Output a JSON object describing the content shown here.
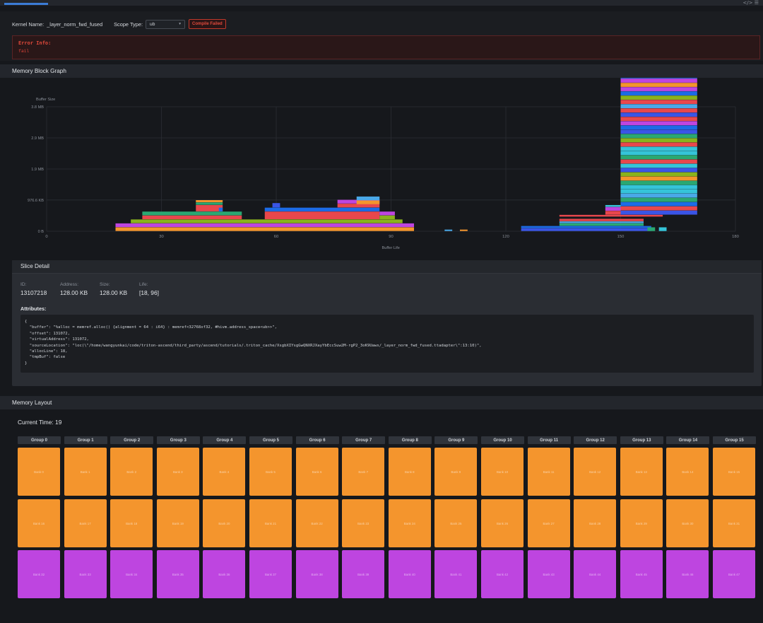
{
  "config": {
    "kernel_label": "Kernel Name:",
    "kernel_name": "_layer_norm_fwd_fused",
    "scope_label": "Scope Type:",
    "scope_value": "ub",
    "status_badge": "Compile Failed",
    "error_title": "Error Info:",
    "error_message": "fail"
  },
  "sections": {
    "graph": "Memory Block Graph",
    "slice": "Slice Detail",
    "layout": "Memory Layout"
  },
  "chart_data": {
    "type": "bar",
    "ylabel": "Buffer Size",
    "xlabel": "Buffer Life",
    "xlim": [
      0,
      180
    ],
    "ylim_mb": [
      0,
      3.8
    ],
    "x_ticks": [
      "0",
      "30",
      "60",
      "90",
      "120",
      "150",
      "180"
    ],
    "y_ticks": [
      "0 B",
      "976.6 KB",
      "1.9 MB",
      "2.9 MB",
      "3.8 MB"
    ],
    "grid": true,
    "blocks": [
      {
        "x0": 18,
        "x1": 96,
        "y0": 0.0,
        "y1": 0.12,
        "color": "#f4952d"
      },
      {
        "x0": 18,
        "x1": 96,
        "y0": 0.12,
        "y1": 0.24,
        "color": "#be45e0"
      },
      {
        "x0": 22,
        "x1": 93,
        "y0": 0.24,
        "y1": 0.36,
        "color": "#8ab31c"
      },
      {
        "x0": 25,
        "x1": 51,
        "y0": 0.36,
        "y1": 0.48,
        "color": "#e8474c"
      },
      {
        "x0": 25,
        "x1": 51,
        "y0": 0.48,
        "y1": 0.6,
        "color": "#2aa872"
      },
      {
        "x0": 39,
        "x1": 46,
        "y0": 0.6,
        "y1": 0.8,
        "color": "#e8474c"
      },
      {
        "x0": 39,
        "x1": 46,
        "y0": 0.8,
        "y1": 0.88,
        "color": "#2aa872"
      },
      {
        "x0": 39,
        "x1": 46,
        "y0": 0.88,
        "y1": 0.95,
        "color": "#f4952d"
      },
      {
        "x0": 45,
        "x1": 46,
        "y0": 0.6,
        "y1": 0.72,
        "color": "#1c6be6"
      },
      {
        "x0": 57,
        "x1": 87,
        "y0": 0.36,
        "y1": 0.6,
        "color": "#e8474c"
      },
      {
        "x0": 57,
        "x1": 87,
        "y0": 0.6,
        "y1": 0.72,
        "color": "#1c6be6"
      },
      {
        "x0": 59,
        "x1": 61,
        "y0": 0.72,
        "y1": 0.86,
        "color": "#3a55e6"
      },
      {
        "x0": 76,
        "x1": 87,
        "y0": 0.72,
        "y1": 0.84,
        "color": "#e8474c"
      },
      {
        "x0": 76,
        "x1": 87,
        "y0": 0.84,
        "y1": 0.96,
        "color": "#be45e0"
      },
      {
        "x0": 81,
        "x1": 87,
        "y0": 0.82,
        "y1": 0.94,
        "color": "#f4952d"
      },
      {
        "x0": 81,
        "x1": 87,
        "y0": 0.94,
        "y1": 1.06,
        "color": "#4aa8e8"
      },
      {
        "x0": 87,
        "x1": 91,
        "y0": 0.36,
        "y1": 0.48,
        "color": "#8ab31c"
      },
      {
        "x0": 87,
        "x1": 91,
        "y0": 0.48,
        "y1": 0.6,
        "color": "#be45e0"
      },
      {
        "x0": 104,
        "x1": 106,
        "y0": 0.0,
        "y1": 0.05,
        "color": "#4aa8e8"
      },
      {
        "x0": 108,
        "x1": 110,
        "y0": 0.0,
        "y1": 0.05,
        "color": "#f4952d"
      },
      {
        "x0": 124,
        "x1": 158,
        "y0": 0.0,
        "y1": 0.09,
        "color": "#3a55e6"
      },
      {
        "x0": 124,
        "x1": 158,
        "y0": 0.09,
        "y1": 0.16,
        "color": "#1c6be6"
      },
      {
        "x0": 134,
        "x1": 156,
        "y0": 0.16,
        "y1": 0.24,
        "color": "#2aa872"
      },
      {
        "x0": 134,
        "x1": 156,
        "y0": 0.24,
        "y1": 0.3,
        "color": "#4aa8e8"
      },
      {
        "x0": 134,
        "x1": 156,
        "y0": 0.3,
        "y1": 0.38,
        "color": "#e8474c"
      },
      {
        "x0": 134,
        "x1": 161,
        "y0": 0.44,
        "y1": 0.5,
        "color": "#e8474c"
      },
      {
        "x0": 157,
        "x1": 159,
        "y0": 0.0,
        "y1": 0.12,
        "color": "#2aa872"
      },
      {
        "x0": 160,
        "x1": 162,
        "y0": 0.0,
        "y1": 0.12,
        "color": "#35c4d9"
      },
      {
        "x0": 146,
        "x1": 150,
        "y0": 0.5,
        "y1": 0.62,
        "color": "#e8474c"
      },
      {
        "x0": 146,
        "x1": 150,
        "y0": 0.62,
        "y1": 0.74,
        "color": "#be45e0"
      },
      {
        "x0": 146,
        "x1": 150,
        "y0": 0.74,
        "y1": 0.8,
        "color": "#35c4d9"
      }
    ],
    "stack": {
      "x0": 150,
      "x1": 170,
      "y_start": 0.5,
      "y_step": 0.13,
      "colors": [
        "#3a55e6",
        "#e8474c",
        "#1c6be6",
        "#2aa872",
        "#4aa8e8",
        "#35c4d9",
        "#35c4d9",
        "#2aa872",
        "#f4952d",
        "#8ab31c",
        "#3a55e6",
        "#35c4d9",
        "#e8474c",
        "#2aa872",
        "#35c4d9",
        "#35c4d9",
        "#e8474c",
        "#8ab31c",
        "#2aa872",
        "#3a55e6",
        "#1c6be6",
        "#be45e0",
        "#e8474c",
        "#3a55e6",
        "#e8474c",
        "#4aa8e8",
        "#e8474c",
        "#8ab31c",
        "#1c6be6",
        "#be45e0",
        "#f4952d",
        "#be45e0",
        "#1c6be6",
        "#e8474c",
        "#8ab31c",
        "#3a55e6",
        "#be45e0"
      ]
    }
  },
  "slice": {
    "fields": [
      {
        "key": "ID:",
        "value": "13107218"
      },
      {
        "key": "Address:",
        "value": "128.00 KB"
      },
      {
        "key": "Size:",
        "value": "128.00 KB"
      },
      {
        "key": "Life:",
        "value": "[18, 96]"
      }
    ],
    "attributes_label": "Attributes:",
    "attributes_json": "{\n  \"buffer\": \"%alloc = memref.alloc() {alignment = 64 : i64} : memref<32768xf32, #hivm.address_space<ub>>\",\n  \"offset\": 131072,\n  \"virtualAddress\": 131072,\n  \"sourceLocation\": \"loc(\\\"/home/wangyunkai/code/triton-ascend/third_party/ascend/tutorials/.triton_cache/XsgbXIYsgGwQNXRJXayYbEccSuw2M-rgP2_3oK9Uaws/_layer_norm_fwd_fused.ttadapter\\\":13:10)\",\n  \"allocLine\": 18,\n  \"tmpBuf\": false\n}"
  },
  "layout": {
    "current_time_label": "Current Time: 19",
    "groups": [
      "Group 0",
      "Group 1",
      "Group 2",
      "Group 3",
      "Group 4",
      "Group 5",
      "Group 6",
      "Group 7",
      "Group 8",
      "Group 9",
      "Group 10",
      "Group 11",
      "Group 12",
      "Group 13",
      "Group 14",
      "Group 15"
    ],
    "bank_rows": [
      {
        "color": "o",
        "banks": [
          "Bank 0",
          "Bank 1",
          "Bank 2",
          "Bank 3",
          "Bank 4",
          "Bank 5",
          "Bank 6",
          "Bank 7",
          "Bank 8",
          "Bank 9",
          "Bank 10",
          "Bank 11",
          "Bank 12",
          "Bank 13",
          "Bank 14",
          "Bank 15"
        ]
      },
      {
        "color": "o",
        "banks": [
          "Bank 16",
          "Bank 17",
          "Bank 18",
          "Bank 19",
          "Bank 20",
          "Bank 21",
          "Bank 22",
          "Bank 23",
          "Bank 24",
          "Bank 25",
          "Bank 26",
          "Bank 27",
          "Bank 28",
          "Bank 29",
          "Bank 30",
          "Bank 31"
        ]
      },
      {
        "color": "p",
        "banks": [
          "Bank 32",
          "Bank 33",
          "Bank 34",
          "Bank 35",
          "Bank 36",
          "Bank 37",
          "Bank 38",
          "Bank 39",
          "Bank 40",
          "Bank 41",
          "Bank 42",
          "Bank 43",
          "Bank 44",
          "Bank 45",
          "Bank 46",
          "Bank 47"
        ]
      }
    ]
  }
}
